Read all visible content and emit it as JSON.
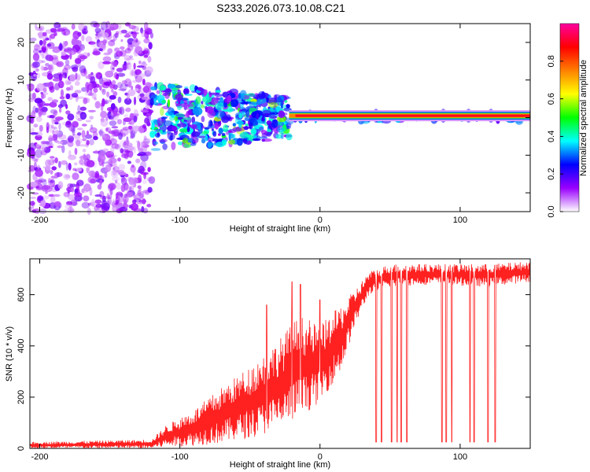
{
  "title": "S233.2026.073.10.08.C21",
  "chart_data": [
    {
      "type": "heatmap",
      "name": "spectrogram",
      "xlabel": "Height of straight line (km)",
      "ylabel": "Frequency (Hz)",
      "xlim": [
        -207,
        150
      ],
      "ylim": [
        -25,
        25
      ],
      "xticks": [
        -200,
        -100,
        0,
        100
      ],
      "xtick_labels": [
        "-200",
        "-100",
        "0",
        "100"
      ],
      "yticks": [
        -20,
        -10,
        0,
        10,
        20
      ],
      "ytick_labels": [
        "-20",
        "-10",
        "0",
        "10",
        "20"
      ],
      "carrier": {
        "x_start": -22,
        "x_end": 150,
        "freq": 0.5,
        "amplitude": 0.9
      },
      "regions": [
        {
          "x_range": [
            -207,
            -120
          ],
          "freq_spread": 25,
          "typical_amplitude": 0.1
        },
        {
          "x_range": [
            -120,
            -22
          ],
          "freq_spread": 6,
          "typical_amplitude": 0.25
        },
        {
          "x_range": [
            -22,
            150
          ],
          "freq_spread": 1,
          "typical_amplitude": 0.9
        }
      ],
      "colorbar": {
        "label": "Normalized spectral amplitude",
        "range": [
          0,
          1
        ],
        "ticks": [
          0.0,
          0.2,
          0.4,
          0.6,
          0.8
        ],
        "tick_labels": [
          "0.0",
          "0.2",
          "0.4",
          "0.6",
          "0.8"
        ],
        "colors": [
          "#ffffff",
          "#9a00ff",
          "#0000ff",
          "#00ffff",
          "#00ff00",
          "#ffff00",
          "#ff8000",
          "#ff0000",
          "#ff00a0"
        ]
      }
    },
    {
      "type": "line",
      "name": "snr",
      "xlabel": "Height of straight line (km)",
      "ylabel": "SNR (10 * v/v)",
      "xlim": [
        -207,
        150
      ],
      "ylim": [
        0,
        740
      ],
      "xticks": [
        -200,
        -100,
        0,
        100
      ],
      "xtick_labels": [
        "-200",
        "-100",
        "0",
        "100"
      ],
      "yticks": [
        0,
        200,
        400,
        600
      ],
      "ytick_labels": [
        "0",
        "200",
        "400",
        "600"
      ],
      "color": "#ff2020",
      "envelope": [
        {
          "x": -207,
          "low": 0,
          "high": 25
        },
        {
          "x": -120,
          "low": 0,
          "high": 35
        },
        {
          "x": -110,
          "low": 5,
          "high": 90
        },
        {
          "x": -90,
          "low": 10,
          "high": 150
        },
        {
          "x": -70,
          "low": 20,
          "high": 240
        },
        {
          "x": -50,
          "low": 40,
          "high": 320
        },
        {
          "x": -30,
          "low": 70,
          "high": 420
        },
        {
          "x": -15,
          "low": 120,
          "high": 520
        },
        {
          "x": 0,
          "low": 180,
          "high": 480
        },
        {
          "x": 15,
          "low": 300,
          "high": 560
        },
        {
          "x": 25,
          "low": 480,
          "high": 620
        },
        {
          "x": 35,
          "low": 600,
          "high": 690
        },
        {
          "x": 50,
          "low": 630,
          "high": 720
        },
        {
          "x": 80,
          "low": 640,
          "high": 720
        },
        {
          "x": 120,
          "low": 630,
          "high": 720
        },
        {
          "x": 150,
          "low": 650,
          "high": 730
        }
      ],
      "spikes": [
        -38,
        -20,
        -14,
        0
      ],
      "spike_values": [
        560,
        650,
        640,
        580
      ],
      "dropouts": [
        40,
        44,
        51,
        55,
        58,
        62,
        87,
        90,
        94,
        107,
        110,
        120,
        125
      ],
      "dropout_value": 25
    }
  ]
}
